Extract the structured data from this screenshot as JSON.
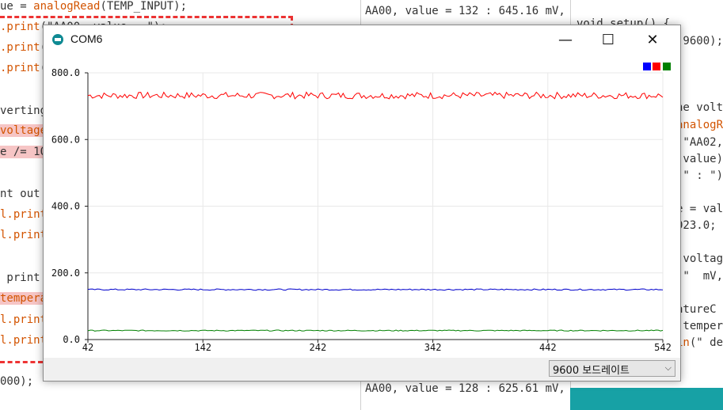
{
  "bg_left": {
    "lines": [
      {
        "parts": [
          {
            "t": "ue = "
          },
          {
            "t": "analogRead",
            "c": "orange"
          },
          {
            "t": "(TEMP_INPUT);"
          }
        ]
      },
      {
        "parts": [
          {
            "t": ".print",
            "c": "orange"
          },
          {
            "t": "(\"AA00, value = \");"
          }
        ]
      },
      {
        "parts": [
          {
            "t": ".print",
            "c": "orange"
          },
          {
            "t": "("
          }
        ]
      },
      {
        "parts": [
          {
            "t": ".print",
            "c": "orange"
          },
          {
            "t": "("
          }
        ]
      },
      {
        "parts": [
          {
            "t": "verting"
          }
        ]
      },
      {
        "parts": [
          {
            "t": "voltage",
            "c": "orange",
            "hl": true
          }
        ]
      },
      {
        "parts": [
          {
            "t": "e /= 10",
            "hl": true
          }
        ]
      },
      {
        "parts": [
          {
            "t": "nt out"
          }
        ]
      },
      {
        "parts": [
          {
            "t": "l.print",
            "c": "orange"
          }
        ]
      },
      {
        "parts": [
          {
            "t": "l.print",
            "c": "orange"
          }
        ]
      },
      {
        "parts": [
          {
            "t": " print"
          }
        ]
      },
      {
        "parts": [
          {
            "t": "tempera",
            "c": "orange",
            "hl": true
          }
        ]
      },
      {
        "parts": [
          {
            "t": "l.print",
            "c": "orange"
          }
        ]
      },
      {
        "parts": [
          {
            "t": "l.print",
            "c": "orange"
          }
        ]
      },
      {
        "parts": [
          {
            "t": "000);"
          }
        ]
      }
    ]
  },
  "bg_mid": {
    "top_line": "AA00, value = 132 : 645.16 mV,",
    "bottom_line": "AA00, value = 128 : 625.61 mV,"
  },
  "bg_right": {
    "lines": [
      {
        "parts": [
          {
            "t": "void setup() {"
          }
        ]
      },
      {
        "parts": [
          {
            "t": "(9600);"
          }
        ]
      },
      {
        "parts": [
          {
            "t": "he volt"
          }
        ]
      },
      {
        "parts": [
          {
            "t": "analogR",
            "c": "orange"
          }
        ]
      },
      {
        "parts": [
          {
            "t": "(\"AA02,"
          }
        ]
      },
      {
        "parts": [
          {
            "t": "(value)"
          }
        ]
      },
      {
        "parts": [
          {
            "t": "(\" : \")"
          }
        ]
      },
      {
        "parts": [
          {
            "t": "e = val"
          }
        ]
      },
      {
        "parts": [
          {
            "t": "023.0;"
          }
        ]
      },
      {
        "parts": [
          {
            "t": "(voltag"
          }
        ]
      },
      {
        "parts": [
          {
            "t": "(\"  mV,"
          }
        ]
      },
      {
        "parts": [
          {
            "t": "atureC"
          }
        ]
      },
      {
        "parts": [
          {
            "t": "(temper"
          }
        ]
      },
      {
        "parts": [
          {
            "t": "in",
            "c": "orange"
          },
          {
            "t": "(\" de"
          }
        ]
      }
    ]
  },
  "window": {
    "title": "COM6",
    "minimize_glyph": "—",
    "maximize_glyph": "☐",
    "close_glyph": "✕",
    "baud_select": {
      "value": "9600 보드레이트",
      "chevron": "⌵"
    }
  },
  "legend_colors": [
    "#0000ff",
    "#ff0000",
    "#008000"
  ],
  "chart_data": {
    "type": "line",
    "title": "",
    "xlabel": "",
    "ylabel": "",
    "xlim": [
      42,
      542
    ],
    "ylim": [
      0,
      800
    ],
    "x_ticks": [
      42,
      142,
      242,
      342,
      442,
      542
    ],
    "y_ticks": [
      "0.0",
      "200.0",
      "400.0",
      "600.0",
      "800.0"
    ],
    "grid": true,
    "legend_position": "top-right",
    "series": [
      {
        "color": "#ff0000",
        "level": 732,
        "jitter": 10
      },
      {
        "color": "#0000cc",
        "level": 150,
        "jitter": 2
      },
      {
        "color": "#008000",
        "level": 27,
        "jitter": 1.5
      }
    ]
  }
}
